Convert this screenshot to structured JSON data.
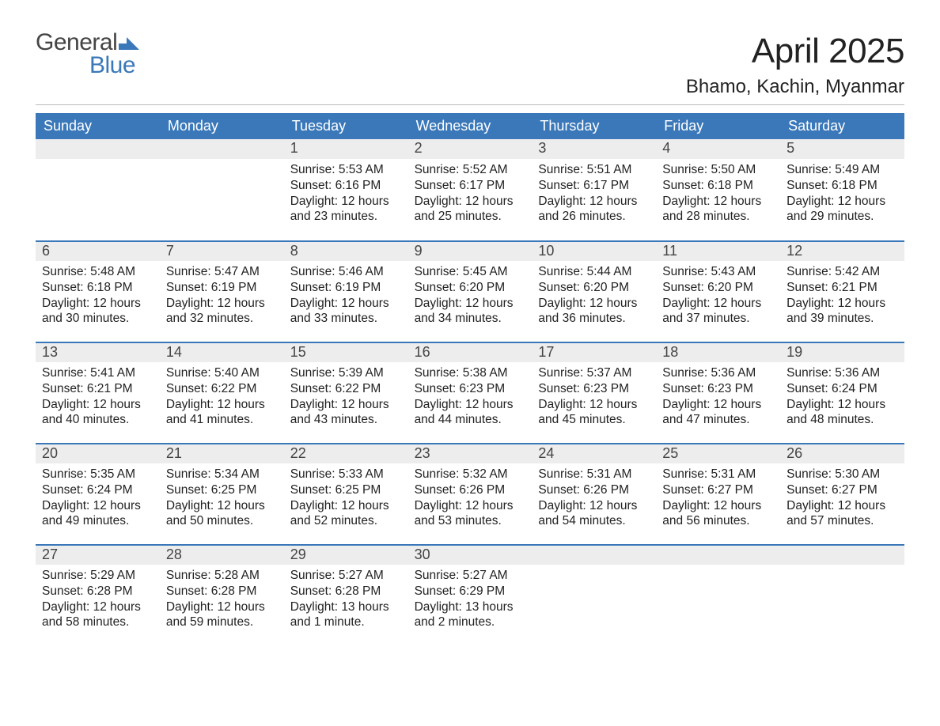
{
  "brand": {
    "line1": "General",
    "line2": "Blue",
    "logo_color": "#3a78b9"
  },
  "title": "April 2025",
  "subtitle": "Bhamo, Kachin, Myanmar",
  "colors": {
    "header_blue": "#3a78b9",
    "row_gray": "#ededed",
    "text": "#222222",
    "white": "#ffffff"
  },
  "dayNames": [
    "Sunday",
    "Monday",
    "Tuesday",
    "Wednesday",
    "Thursday",
    "Friday",
    "Saturday"
  ],
  "labels": {
    "sunrise": "Sunrise:",
    "sunset": "Sunset:",
    "daylight": "Daylight:"
  },
  "weeks": [
    [
      null,
      null,
      {
        "d": "1",
        "sunrise": "5:53 AM",
        "sunset": "6:16 PM",
        "daylight": "12 hours and 23 minutes."
      },
      {
        "d": "2",
        "sunrise": "5:52 AM",
        "sunset": "6:17 PM",
        "daylight": "12 hours and 25 minutes."
      },
      {
        "d": "3",
        "sunrise": "5:51 AM",
        "sunset": "6:17 PM",
        "daylight": "12 hours and 26 minutes."
      },
      {
        "d": "4",
        "sunrise": "5:50 AM",
        "sunset": "6:18 PM",
        "daylight": "12 hours and 28 minutes."
      },
      {
        "d": "5",
        "sunrise": "5:49 AM",
        "sunset": "6:18 PM",
        "daylight": "12 hours and 29 minutes."
      }
    ],
    [
      {
        "d": "6",
        "sunrise": "5:48 AM",
        "sunset": "6:18 PM",
        "daylight": "12 hours and 30 minutes."
      },
      {
        "d": "7",
        "sunrise": "5:47 AM",
        "sunset": "6:19 PM",
        "daylight": "12 hours and 32 minutes."
      },
      {
        "d": "8",
        "sunrise": "5:46 AM",
        "sunset": "6:19 PM",
        "daylight": "12 hours and 33 minutes."
      },
      {
        "d": "9",
        "sunrise": "5:45 AM",
        "sunset": "6:20 PM",
        "daylight": "12 hours and 34 minutes."
      },
      {
        "d": "10",
        "sunrise": "5:44 AM",
        "sunset": "6:20 PM",
        "daylight": "12 hours and 36 minutes."
      },
      {
        "d": "11",
        "sunrise": "5:43 AM",
        "sunset": "6:20 PM",
        "daylight": "12 hours and 37 minutes."
      },
      {
        "d": "12",
        "sunrise": "5:42 AM",
        "sunset": "6:21 PM",
        "daylight": "12 hours and 39 minutes."
      }
    ],
    [
      {
        "d": "13",
        "sunrise": "5:41 AM",
        "sunset": "6:21 PM",
        "daylight": "12 hours and 40 minutes."
      },
      {
        "d": "14",
        "sunrise": "5:40 AM",
        "sunset": "6:22 PM",
        "daylight": "12 hours and 41 minutes."
      },
      {
        "d": "15",
        "sunrise": "5:39 AM",
        "sunset": "6:22 PM",
        "daylight": "12 hours and 43 minutes."
      },
      {
        "d": "16",
        "sunrise": "5:38 AM",
        "sunset": "6:23 PM",
        "daylight": "12 hours and 44 minutes."
      },
      {
        "d": "17",
        "sunrise": "5:37 AM",
        "sunset": "6:23 PM",
        "daylight": "12 hours and 45 minutes."
      },
      {
        "d": "18",
        "sunrise": "5:36 AM",
        "sunset": "6:23 PM",
        "daylight": "12 hours and 47 minutes."
      },
      {
        "d": "19",
        "sunrise": "5:36 AM",
        "sunset": "6:24 PM",
        "daylight": "12 hours and 48 minutes."
      }
    ],
    [
      {
        "d": "20",
        "sunrise": "5:35 AM",
        "sunset": "6:24 PM",
        "daylight": "12 hours and 49 minutes."
      },
      {
        "d": "21",
        "sunrise": "5:34 AM",
        "sunset": "6:25 PM",
        "daylight": "12 hours and 50 minutes."
      },
      {
        "d": "22",
        "sunrise": "5:33 AM",
        "sunset": "6:25 PM",
        "daylight": "12 hours and 52 minutes."
      },
      {
        "d": "23",
        "sunrise": "5:32 AM",
        "sunset": "6:26 PM",
        "daylight": "12 hours and 53 minutes."
      },
      {
        "d": "24",
        "sunrise": "5:31 AM",
        "sunset": "6:26 PM",
        "daylight": "12 hours and 54 minutes."
      },
      {
        "d": "25",
        "sunrise": "5:31 AM",
        "sunset": "6:27 PM",
        "daylight": "12 hours and 56 minutes."
      },
      {
        "d": "26",
        "sunrise": "5:30 AM",
        "sunset": "6:27 PM",
        "daylight": "12 hours and 57 minutes."
      }
    ],
    [
      {
        "d": "27",
        "sunrise": "5:29 AM",
        "sunset": "6:28 PM",
        "daylight": "12 hours and 58 minutes."
      },
      {
        "d": "28",
        "sunrise": "5:28 AM",
        "sunset": "6:28 PM",
        "daylight": "12 hours and 59 minutes."
      },
      {
        "d": "29",
        "sunrise": "5:27 AM",
        "sunset": "6:28 PM",
        "daylight": "13 hours and 1 minute."
      },
      {
        "d": "30",
        "sunrise": "5:27 AM",
        "sunset": "6:29 PM",
        "daylight": "13 hours and 2 minutes."
      },
      null,
      null,
      null
    ]
  ]
}
